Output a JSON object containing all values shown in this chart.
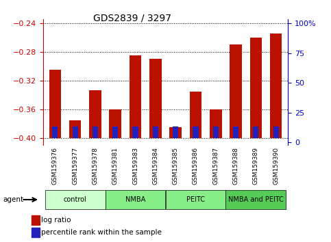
{
  "title": "GDS2839 / 3297",
  "samples": [
    "GSM159376",
    "GSM159377",
    "GSM159378",
    "GSM159381",
    "GSM159383",
    "GSM159384",
    "GSM159385",
    "GSM159386",
    "GSM159387",
    "GSM159388",
    "GSM159389",
    "GSM159390"
  ],
  "log_ratios": [
    -0.305,
    -0.375,
    -0.334,
    -0.36,
    -0.285,
    -0.29,
    -0.385,
    -0.335,
    -0.36,
    -0.27,
    -0.26,
    -0.255
  ],
  "pct_ranks": [
    0.1,
    0.1,
    0.1,
    0.1,
    0.1,
    0.1,
    0.1,
    0.1,
    0.1,
    0.1,
    0.1,
    0.1
  ],
  "ylim_left": [
    -0.41,
    -0.235
  ],
  "ylim_right": [
    -2.5625,
    103.4375
  ],
  "yticks_left": [
    -0.4,
    -0.36,
    -0.32,
    -0.28,
    -0.24
  ],
  "yticks_right": [
    0,
    25,
    50,
    75,
    100
  ],
  "bar_bottom": -0.4,
  "bar_color_red": "#bb1100",
  "bar_color_blue": "#2222bb",
  "group_info": [
    {
      "label": "control",
      "indices": [
        0,
        1,
        2
      ],
      "color": "#ccffcc"
    },
    {
      "label": "NMBA",
      "indices": [
        3,
        4,
        5
      ],
      "color": "#77ee77"
    },
    {
      "label": "PEITC",
      "indices": [
        6,
        7,
        8
      ],
      "color": "#77ee77"
    },
    {
      "label": "NMBA and PEITC",
      "indices": [
        9,
        10,
        11
      ],
      "color": "#44cc44"
    }
  ],
  "agent_label": "agent",
  "legend_red": "log ratio",
  "legend_blue": "percentile rank within the sample",
  "grid_color": "black",
  "left_tick_color": "#cc0000",
  "right_tick_color": "#0000cc",
  "xtick_bg": "#cccccc",
  "right_ylabel": "100%"
}
